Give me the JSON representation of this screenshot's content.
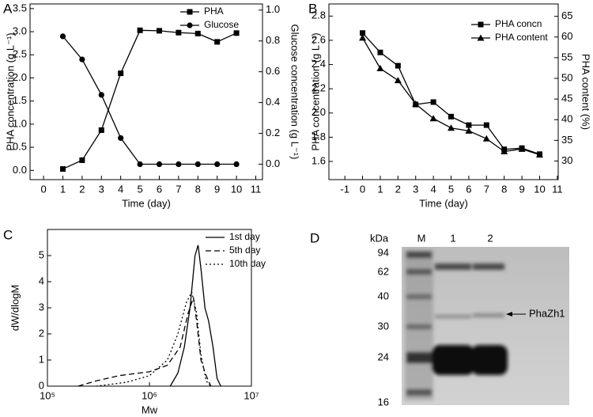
{
  "chart_data": [
    {
      "type": "line",
      "panel": "A",
      "x_label": "Time (day)",
      "y_label": "PHA concentration (g L⁻¹)",
      "y2_label": "Glucose concentration (g L⁻¹)",
      "x": [
        1,
        2,
        3,
        4,
        5,
        6,
        7,
        8,
        9,
        10
      ],
      "series": [
        {
          "name": "PHA",
          "color": "#000000",
          "marker": "square",
          "style": "solid",
          "values": [
            0.03,
            0.22,
            0.87,
            2.1,
            3.03,
            3.02,
            2.98,
            2.96,
            2.78,
            2.97
          ]
        },
        {
          "name": "Glucose",
          "color": "#000000",
          "marker": "circle",
          "style": "solid",
          "axis": "y2",
          "values": [
            0.83,
            0.68,
            0.45,
            0.17,
            0.0,
            0.0,
            0.0,
            0.0,
            0.0,
            0.0
          ]
        }
      ],
      "xlim": [
        -0.7,
        11.35
      ],
      "xticks": [
        0,
        1,
        2,
        3,
        4,
        5,
        6,
        7,
        8,
        9,
        10,
        11
      ],
      "ylim": [
        -0.2,
        3.6
      ],
      "yticks": [
        {
          "value": 0,
          "label": "0.0"
        },
        0.5,
        {
          "value": 1,
          "label": "1.0"
        },
        1.5,
        {
          "value": 2,
          "label": "2.0"
        },
        2.5,
        {
          "value": 3,
          "label": "3.0"
        },
        3.5
      ],
      "y2lim": [
        -0.1,
        1.04
      ],
      "y2ticks": [
        {
          "value": 0,
          "label": "0.0"
        },
        0.2,
        0.4,
        0.6,
        0.8,
        {
          "value": 1,
          "label": "1.0"
        }
      ],
      "legend": "upper right"
    },
    {
      "type": "line",
      "panel": "B",
      "x_label": "Time (day)",
      "y_label": "PHA concentration (g L⁻¹)",
      "y2_label": "PHA content (%)",
      "x": [
        0,
        1,
        2,
        3,
        4,
        5,
        6,
        7,
        8,
        9,
        10
      ],
      "series": [
        {
          "name": "PHA concn",
          "color": "#000000",
          "marker": "square",
          "style": "solid",
          "values": [
            2.66,
            2.5,
            2.39,
            2.07,
            2.09,
            1.97,
            1.9,
            1.9,
            1.7,
            1.71,
            1.66
          ]
        },
        {
          "name": "PHA content",
          "color": "#000000",
          "marker": "triangle",
          "style": "solid",
          "axis": "y2",
          "values": [
            59.8,
            52.4,
            49.5,
            43.8,
            40.3,
            38,
            37.3,
            35.4,
            32.3,
            32.9,
            31.5
          ]
        }
      ],
      "xlim": [
        -1.9,
        11.05
      ],
      "xticks": [
        -1,
        0,
        1,
        2,
        3,
        4,
        5,
        6,
        7,
        8,
        9,
        10,
        11
      ],
      "ylim": [
        1.45,
        2.9
      ],
      "yticks": [
        1.6,
        1.8,
        {
          "value": 2,
          "label": "2.0"
        },
        2.2,
        2.4,
        2.6,
        2.8
      ],
      "y2lim": [
        25.5,
        68
      ],
      "y2ticks": [
        30,
        35,
        40,
        45,
        50,
        55,
        60,
        65
      ],
      "legend": "upper right"
    },
    {
      "type": "line",
      "panel": "C",
      "x_label": "Mw",
      "y_label": "dW/dlogM",
      "log_x": true,
      "series": [
        {
          "name": "1st day",
          "color": "#000000",
          "style": "solid",
          "x": [
            1600000,
            1900000,
            2200000,
            2500000,
            2800000,
            3000000,
            3200000,
            3500000,
            3800000,
            4200000,
            4600000,
            5000000
          ],
          "values": [
            0,
            0.5,
            1.5,
            3,
            5,
            5.4,
            4.5,
            3,
            2.5,
            1.5,
            0.3,
            0
          ]
        },
        {
          "name": "5th day",
          "color": "#000000",
          "style": "dashed",
          "x": [
            200000,
            300000,
            500000,
            1000000,
            1500000,
            2000000,
            2400000,
            2700000,
            2900000,
            3200000,
            3600000,
            4000000
          ],
          "values": [
            0,
            0.2,
            0.4,
            0.55,
            0.8,
            1.5,
            2.8,
            3.4,
            2.5,
            1,
            0.4,
            0
          ]
        },
        {
          "name": "10th day",
          "color": "#000000",
          "style": "dotted",
          "x": [
            300000,
            600000,
            1000000,
            1500000,
            1900000,
            2300000,
            2600000,
            2900000,
            3200000,
            3600000,
            4000000
          ],
          "values": [
            0,
            0.15,
            0.4,
            1,
            2,
            3.2,
            3.6,
            2.8,
            1.2,
            0.2,
            0
          ]
        }
      ],
      "xlim": [
        100000,
        10000000
      ],
      "xticks": [
        {
          "value": 100000,
          "label": "10⁵"
        },
        {
          "value": 1000000,
          "label": "10⁶"
        },
        {
          "value": 10000000,
          "label": "10⁷"
        }
      ],
      "ylim": [
        0,
        6
      ],
      "yticks": [
        0,
        1,
        2,
        3,
        4,
        5
      ],
      "legend": "upper right"
    },
    {
      "type": "gel",
      "panel": "D",
      "unit_label": "kDa",
      "lanes": [
        "M",
        "1",
        "2"
      ],
      "markers": [
        94,
        62,
        40,
        30,
        24,
        16
      ],
      "annotation": "PhaZh1"
    }
  ]
}
